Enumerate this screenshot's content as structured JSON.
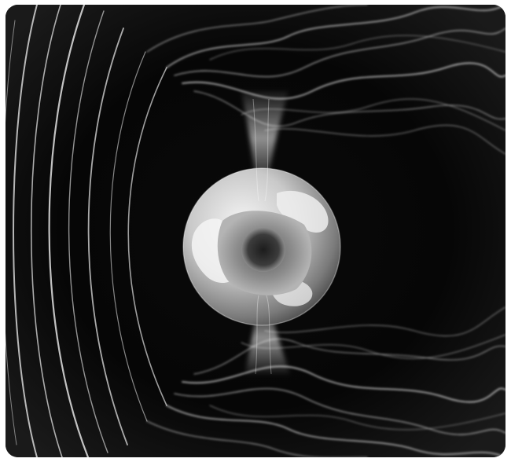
{
  "image": {
    "subject": "earth-magnetosphere",
    "palette": {
      "background": "#050505",
      "field_lines": "#f2f2f2",
      "globe_light": "#e6e6e6",
      "globe_dark": "#3a3a3a",
      "frame": "#ffffff"
    }
  }
}
